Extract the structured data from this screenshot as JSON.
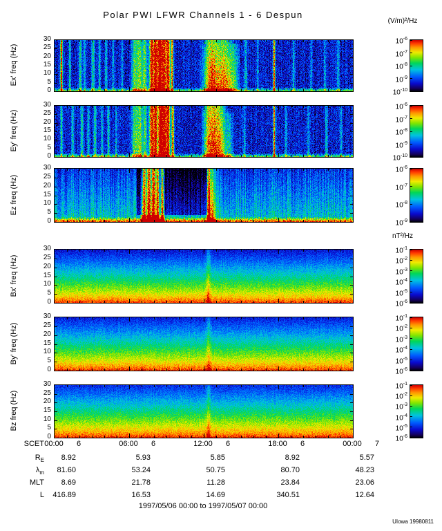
{
  "title": "Polar PWI LFWR Channels 1 - 6 Despun",
  "units": {
    "e": "(V/m)²/Hz",
    "b": "nT²/Hz"
  },
  "footer": "1997/05/06 00:00 to 1997/05/07 00:00",
  "credit": "UIowa 19980811",
  "chart_data": {
    "type": "heatmap",
    "title": "Polar PWI LFWR Channels 1 - 6 Despun",
    "x_axis": {
      "label": "SCET",
      "ticks": [
        {
          "time": "00:00",
          "day": "6"
        },
        {
          "time": "06:00",
          "day": "6"
        },
        {
          "time": "12:00",
          "day": "6"
        },
        {
          "time": "18:00",
          "day": "6"
        },
        {
          "time": "00:00",
          "day": "7"
        }
      ],
      "range": "1997/05/06 00:00 to 1997/05/07 00:00"
    },
    "y_ticks": [
      0,
      5,
      10,
      15,
      20,
      25,
      30
    ],
    "y_range_hz": [
      0,
      30
    ],
    "panels": [
      {
        "id": "ex",
        "ylabel": "Ex' freq (Hz)",
        "unit": "(V/m)²/Hz",
        "cbar_exponents": [
          -6,
          -7,
          -8,
          -9,
          -10
        ],
        "spec": {
          "kind": "E",
          "seed": 11,
          "bg": 0.17,
          "noise": 0.14,
          "colnoise": 0.05,
          "floor_f": 2.4,
          "floor_amp": 0.52,
          "events": [
            [
              0.022,
              0.0025,
              30,
              0.9,
              0.05
            ],
            [
              0.05,
              0.003,
              30,
              0.3,
              0.2
            ],
            [
              0.085,
              0.004,
              30,
              0.36,
              0.2
            ],
            [
              0.1,
              0.003,
              30,
              0.28,
              0.2
            ],
            [
              0.128,
              0.004,
              30,
              0.34,
              0.2
            ],
            [
              0.15,
              0.003,
              30,
              0.3,
              0.2
            ],
            [
              0.172,
              0.003,
              30,
              0.33,
              0.2
            ],
            [
              0.195,
              0.0025,
              30,
              0.28,
              0.2
            ],
            [
              0.225,
              0.0025,
              30,
              0.24,
              0.2
            ],
            [
              0.268,
              0.008,
              30,
              0.46,
              0.25
            ],
            [
              0.285,
              0.006,
              30,
              0.5,
              0.2
            ],
            [
              0.301,
              0.005,
              30,
              0.48,
              0.2
            ],
            [
              0.325,
              0.006,
              30,
              0.95,
              0.05
            ],
            [
              0.338,
              0.004,
              30,
              0.88,
              0.05
            ],
            [
              0.35,
              0.005,
              30,
              0.95,
              0.05
            ],
            [
              0.365,
              0.007,
              30,
              1.0,
              0.05
            ],
            [
              0.38,
              0.004,
              30,
              0.9,
              0.05
            ],
            [
              0.393,
              0.003,
              30,
              0.8,
              0.1
            ],
            [
              0.52,
              0.015,
              30,
              0.5,
              0.45
            ],
            [
              0.545,
              0.024,
              30,
              0.62,
              0.5
            ],
            [
              0.576,
              0.015,
              30,
              0.5,
              0.55
            ],
            [
              0.602,
              0.01,
              28,
              0.36,
              0.5
            ],
            [
              0.64,
              0.004,
              30,
              0.28,
              0.3
            ],
            [
              0.68,
              0.003,
              30,
              0.24,
              0.3
            ],
            [
              0.735,
              0.0025,
              30,
              0.85,
              0.05
            ],
            [
              0.8,
              0.003,
              30,
              0.25,
              0.3
            ],
            [
              0.86,
              0.003,
              30,
              0.22,
              0.3
            ],
            [
              0.905,
              0.003,
              30,
              0.26,
              0.3
            ],
            [
              0.95,
              0.003,
              30,
              0.28,
              0.3
            ]
          ]
        }
      },
      {
        "id": "ey",
        "ylabel": "Ey' freq (Hz)",
        "unit": "(V/m)²/Hz",
        "cbar_exponents": [
          -6,
          -7,
          -8,
          -9,
          -10
        ],
        "spec": {
          "kind": "E",
          "seed": 22,
          "bg": 0.17,
          "noise": 0.14,
          "colnoise": 0.05,
          "floor_f": 2.4,
          "floor_amp": 0.5,
          "events": [
            [
              0.022,
              0.0025,
              30,
              0.45,
              0.2
            ],
            [
              0.06,
              0.003,
              30,
              0.32,
              0.2
            ],
            [
              0.09,
              0.004,
              30,
              0.36,
              0.2
            ],
            [
              0.112,
              0.003,
              30,
              0.3,
              0.2
            ],
            [
              0.135,
              0.004,
              30,
              0.34,
              0.2
            ],
            [
              0.158,
              0.003,
              30,
              0.3,
              0.2
            ],
            [
              0.18,
              0.003,
              30,
              0.32,
              0.2
            ],
            [
              0.205,
              0.0025,
              30,
              0.28,
              0.2
            ],
            [
              0.268,
              0.008,
              30,
              0.46,
              0.25
            ],
            [
              0.285,
              0.006,
              30,
              0.5,
              0.2
            ],
            [
              0.302,
              0.005,
              30,
              0.48,
              0.2
            ],
            [
              0.325,
              0.006,
              30,
              0.95,
              0.05
            ],
            [
              0.338,
              0.004,
              30,
              0.9,
              0.05
            ],
            [
              0.352,
              0.005,
              30,
              0.95,
              0.05
            ],
            [
              0.366,
              0.007,
              30,
              1.0,
              0.05
            ],
            [
              0.38,
              0.004,
              30,
              0.9,
              0.05
            ],
            [
              0.395,
              0.003,
              30,
              0.8,
              0.1
            ],
            [
              0.515,
              0.012,
              30,
              0.52,
              0.35
            ],
            [
              0.535,
              0.016,
              30,
              0.62,
              0.3
            ],
            [
              0.558,
              0.012,
              30,
              0.48,
              0.5
            ],
            [
              0.585,
              0.008,
              26,
              0.32,
              0.5
            ],
            [
              0.635,
              0.003,
              30,
              0.26,
              0.3
            ],
            [
              0.735,
              0.0025,
              30,
              0.82,
              0.05
            ],
            [
              0.775,
              0.003,
              30,
              0.24,
              0.3
            ],
            [
              0.85,
              0.003,
              30,
              0.24,
              0.3
            ],
            [
              0.91,
              0.003,
              30,
              0.3,
              0.3
            ],
            [
              0.96,
              0.003,
              30,
              0.26,
              0.3
            ]
          ]
        }
      },
      {
        "id": "ez",
        "ylabel": "Ez freq (Hz)",
        "unit": "(V/m)²/Hz",
        "cbar_exponents": [
          -6,
          -7,
          -8,
          -9
        ],
        "spec": {
          "kind": "Ez",
          "seed": 33,
          "bg": 0.46,
          "slope": 0.24,
          "noise": 0.1,
          "colnoise": 0.09,
          "floor_f": 3,
          "floor_amp": 0.6,
          "dark": [
            0.275,
            0.515,
            4,
            0.26
          ],
          "events": [
            [
              0.3,
              0.006,
              30,
              0.9,
              0.1
            ],
            [
              0.315,
              0.004,
              30,
              0.95,
              0.05
            ],
            [
              0.33,
              0.006,
              30,
              1.0,
              0.05
            ],
            [
              0.345,
              0.004,
              30,
              0.92,
              0.08
            ],
            [
              0.36,
              0.004,
              30,
              0.85,
              0.1
            ],
            [
              0.515,
              0.004,
              30,
              0.95,
              0.25
            ],
            [
              0.528,
              0.007,
              30,
              0.45,
              0.45
            ]
          ]
        }
      },
      {
        "id": "bx",
        "ylabel": "Bx' freq (Hz)",
        "unit": "nT²/Hz",
        "cbar_exponents": [
          -1,
          -2,
          -3,
          -4,
          -5,
          -6
        ],
        "spec": {
          "kind": "B",
          "seed": 44,
          "p0": 0.98,
          "p1": 0.82,
          "pow": 0.72,
          "noise": 0.07,
          "colnoise": 0.02,
          "events": [
            [
              0.515,
              0.005,
              30,
              0.16,
              0
            ]
          ]
        }
      },
      {
        "id": "by",
        "ylabel": "By' freq (Hz)",
        "unit": "nT²/Hz",
        "cbar_exponents": [
          -1,
          -2,
          -3,
          -4,
          -5,
          -6
        ],
        "spec": {
          "kind": "B",
          "seed": 55,
          "p0": 0.98,
          "p1": 0.8,
          "pow": 0.74,
          "noise": 0.07,
          "colnoise": 0.02,
          "events": [
            [
              0.515,
              0.005,
              30,
              0.14,
              0
            ]
          ]
        }
      },
      {
        "id": "bz",
        "ylabel": "Bz freq (Hz)",
        "unit": "nT²/Hz",
        "cbar_exponents": [
          -1,
          -2,
          -3,
          -4,
          -5,
          -6
        ],
        "spec": {
          "kind": "B",
          "seed": 66,
          "p0": 0.985,
          "p1": 0.78,
          "pow": 0.75,
          "noise": 0.07,
          "colnoise": 0.02,
          "events": [
            [
              0.515,
              0.005,
              30,
              0.14,
              0
            ]
          ]
        }
      }
    ],
    "ephemeris": {
      "rows": [
        {
          "label": "R",
          "sub": "E",
          "values": [
            "8.92",
            "5.93",
            "5.85",
            "8.92",
            "5.57"
          ]
        },
        {
          "label": "λ",
          "sub": "m",
          "values": [
            "81.60",
            "53.24",
            "50.75",
            "80.70",
            "48.23"
          ]
        },
        {
          "label": "MLT",
          "sub": "",
          "values": [
            "8.69",
            "21.78",
            "11.28",
            "23.84",
            "23.06"
          ]
        },
        {
          "label": "L",
          "sub": "",
          "values": [
            "416.89",
            "16.53",
            "14.69",
            "340.51",
            "12.64"
          ]
        }
      ]
    },
    "legend_position": "right",
    "grid": false
  }
}
